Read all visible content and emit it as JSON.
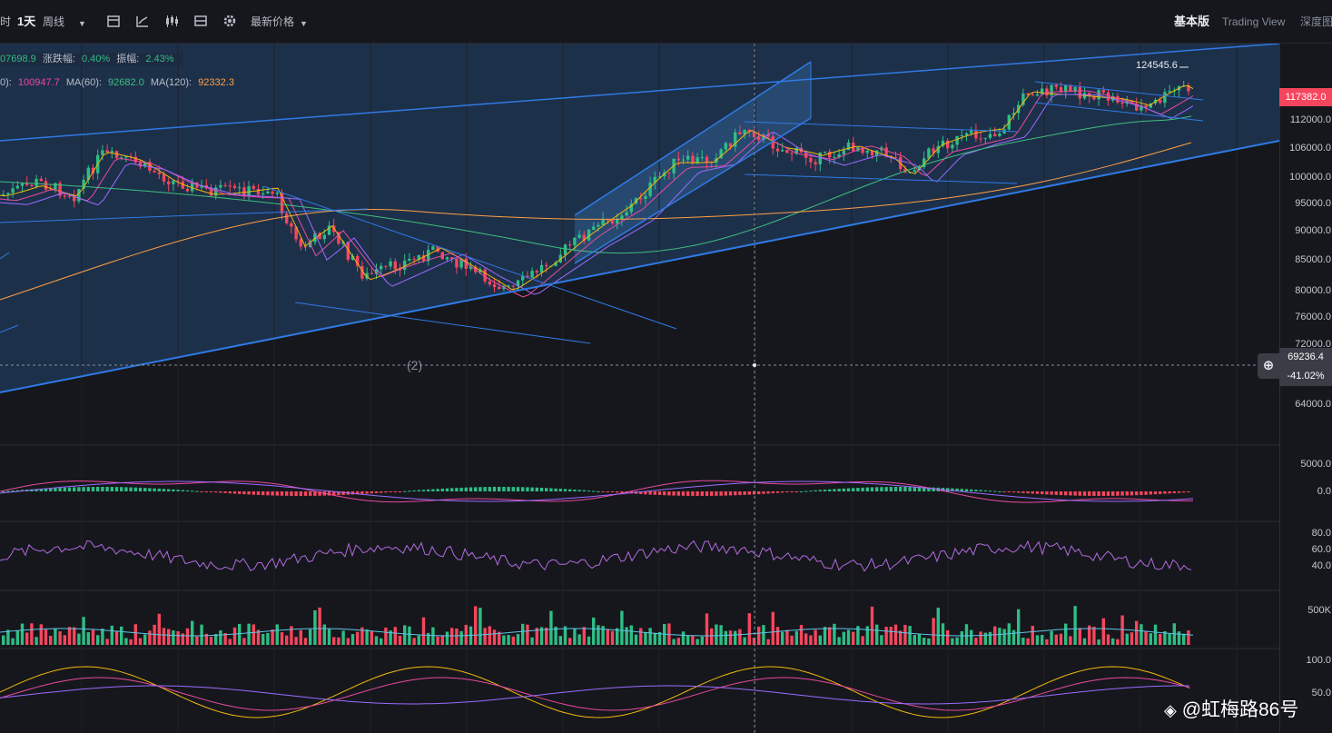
{
  "toolbar": {
    "interval_partial": "时",
    "interval_active": "1天",
    "interval_week": "周线",
    "price_source": "最新价格",
    "view_basic": "基本版",
    "view_tradingview": "Trading View",
    "view_depth": "深度图"
  },
  "legend": {
    "close_partial": "07698.9",
    "change_label": "涨跌幅:",
    "change_value": "0.40%",
    "amp_label": "振幅:",
    "amp_value": "2.43%",
    "ma_partial_label": "0):",
    "ma_partial_value": "100947.7",
    "ma60_label": "MA(60):",
    "ma60_value": "92682.0",
    "ma120_label": "MA(120):",
    "ma120_value": "92332.3"
  },
  "price_axis": {
    "ticks": [
      "112000.0",
      "106000.0",
      "100000.0",
      "95000.0",
      "90000.0",
      "85000.0",
      "80000.0",
      "76000.0",
      "72000.0",
      "64000.0"
    ],
    "last_price": "117382.0",
    "cursor_price": "69236.4",
    "cursor_pct": "-41.02%"
  },
  "annotations": {
    "high_label": "124545.6",
    "count_marker": "(2)"
  },
  "macd_axis": {
    "ticks": [
      "5000.0",
      "0.0"
    ]
  },
  "rsi_axis": {
    "ticks": [
      "80.0",
      "60.0",
      "40.0"
    ]
  },
  "volume_axis": {
    "ticks": [
      "500K"
    ]
  },
  "osc_axis": {
    "ticks": [
      "100.0",
      "50.0"
    ]
  },
  "watermark": "@虹梅路86号",
  "colors": {
    "up": "#2ebd85",
    "down": "#f6465d",
    "channel": "#2f7ae5",
    "ma_yellow": "#f0b90b",
    "ma_pink": "#e84aa0",
    "ma_purple": "#9b6bff",
    "ma_green": "#3fbf7f",
    "ma_orange": "#ff9f43"
  }
}
